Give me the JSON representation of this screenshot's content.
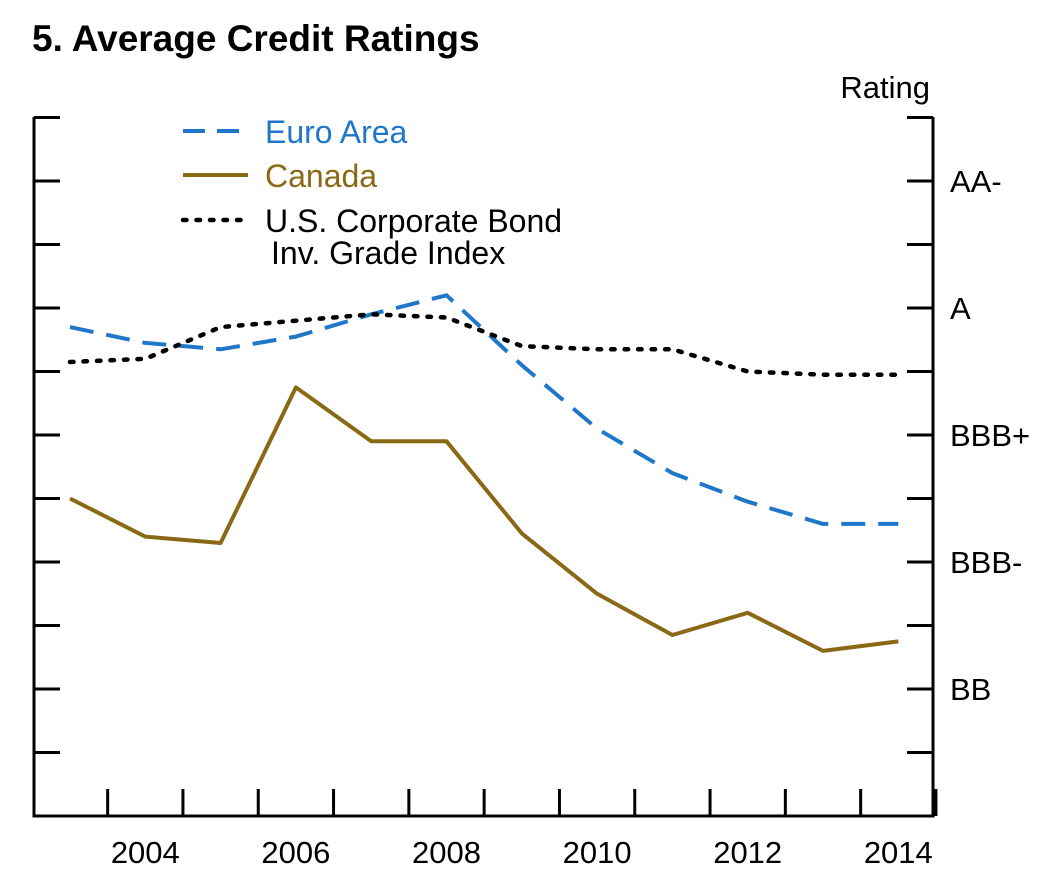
{
  "chart_data": {
    "type": "line",
    "title": "5. Average Credit Ratings",
    "ylabel": "Rating",
    "xlabel": "",
    "x_tick_labels": [
      "2004",
      "2006",
      "2008",
      "2010",
      "2012",
      "2014"
    ],
    "y_ticks": [
      {
        "value": 12,
        "label": "AA-"
      },
      {
        "value": 10,
        "label": "A"
      },
      {
        "value": 8,
        "label": "BBB+"
      },
      {
        "value": 6,
        "label": "BBB-"
      },
      {
        "value": 4,
        "label": "BB"
      }
    ],
    "xlim": [
      2002.5,
      2014.5
    ],
    "ylim": [
      2,
      13
    ],
    "x": [
      2003,
      2004,
      2005,
      2006,
      2007,
      2008,
      2009,
      2010,
      2011,
      2012,
      2013,
      2014
    ],
    "series": [
      {
        "name": "Euro Area",
        "color": "#1f77c9",
        "style": "dashed",
        "values": [
          9.7,
          9.45,
          9.35,
          9.55,
          9.9,
          10.2,
          9.1,
          8.1,
          7.4,
          6.95,
          6.6,
          6.6
        ]
      },
      {
        "name": "Canada",
        "color": "#8a6914",
        "style": "solid",
        "values": [
          7.0,
          6.4,
          6.3,
          8.75,
          7.9,
          7.9,
          6.45,
          5.5,
          4.85,
          5.2,
          4.6,
          4.75
        ]
      },
      {
        "name": "U.S. Corporate Bond Inv. Grade Index",
        "legend_lines": [
          "U.S. Corporate Bond",
          "Inv. Grade Index"
        ],
        "color": "#000000",
        "style": "dotted",
        "values": [
          9.15,
          9.2,
          9.7,
          9.8,
          9.9,
          9.85,
          9.4,
          9.35,
          9.35,
          9.0,
          8.95,
          8.95
        ]
      }
    ],
    "legend_position": "top-left",
    "grid": false
  }
}
